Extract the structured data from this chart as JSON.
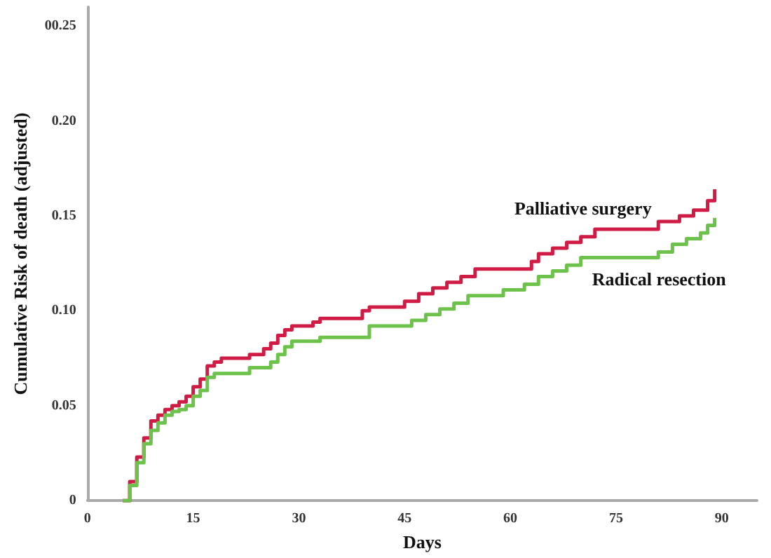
{
  "chart_data": {
    "type": "step",
    "xlabel": "Days",
    "ylabel": "Cumulative Risk of death (adjusted)",
    "xlim": [
      0,
      95
    ],
    "xticks": [
      0,
      15,
      30,
      45,
      60,
      75,
      90
    ],
    "ylim": [
      0,
      0.26
    ],
    "yticks": [
      0,
      0.05,
      {
        "value": 0.1,
        "label": "0.10"
      },
      {
        "value": 0.15,
        "label": "0.15"
      },
      {
        "value": 0.2,
        "label": "0.20"
      },
      {
        "value": 0.25,
        "label": "00.25"
      }
    ],
    "grid": false,
    "legend": false,
    "marker": "none",
    "line_style": "solid",
    "series": [
      {
        "name": "Palliative surgery",
        "color": "#d01c45",
        "x": [
          5,
          6,
          7,
          8,
          9,
          10,
          11,
          12,
          13,
          14,
          15,
          16,
          17,
          18,
          19,
          23,
          25,
          26,
          27,
          28,
          29,
          32,
          33,
          39,
          40,
          45,
          47,
          49,
          51,
          53,
          55,
          63,
          64,
          66,
          68,
          70,
          72,
          81,
          84,
          86,
          88,
          89
        ],
        "values": [
          0,
          0.01,
          0.023,
          0.033,
          0.042,
          0.045,
          0.048,
          0.05,
          0.052,
          0.055,
          0.06,
          0.064,
          0.071,
          0.073,
          0.075,
          0.077,
          0.08,
          0.083,
          0.087,
          0.09,
          0.092,
          0.094,
          0.096,
          0.1,
          0.102,
          0.105,
          0.109,
          0.112,
          0.115,
          0.118,
          0.122,
          0.126,
          0.13,
          0.133,
          0.136,
          0.139,
          0.143,
          0.147,
          0.15,
          0.153,
          0.158,
          0.164
        ]
      },
      {
        "name": "Radical resection",
        "color": "#6cc24a",
        "x": [
          5,
          6,
          7,
          8,
          9,
          10,
          11,
          12,
          13,
          14,
          15,
          16,
          17,
          18,
          23,
          26,
          27,
          28,
          29,
          33,
          40,
          46,
          48,
          50,
          52,
          54,
          59,
          62,
          64,
          66,
          68,
          70,
          81,
          83,
          85,
          87,
          88,
          89
        ],
        "values": [
          0,
          0.008,
          0.02,
          0.03,
          0.037,
          0.041,
          0.045,
          0.047,
          0.048,
          0.05,
          0.055,
          0.058,
          0.065,
          0.067,
          0.07,
          0.073,
          0.077,
          0.081,
          0.084,
          0.086,
          0.092,
          0.095,
          0.098,
          0.101,
          0.104,
          0.108,
          0.111,
          0.114,
          0.118,
          0.121,
          0.124,
          0.128,
          0.131,
          0.135,
          0.138,
          0.141,
          0.145,
          0.149
        ]
      }
    ]
  }
}
